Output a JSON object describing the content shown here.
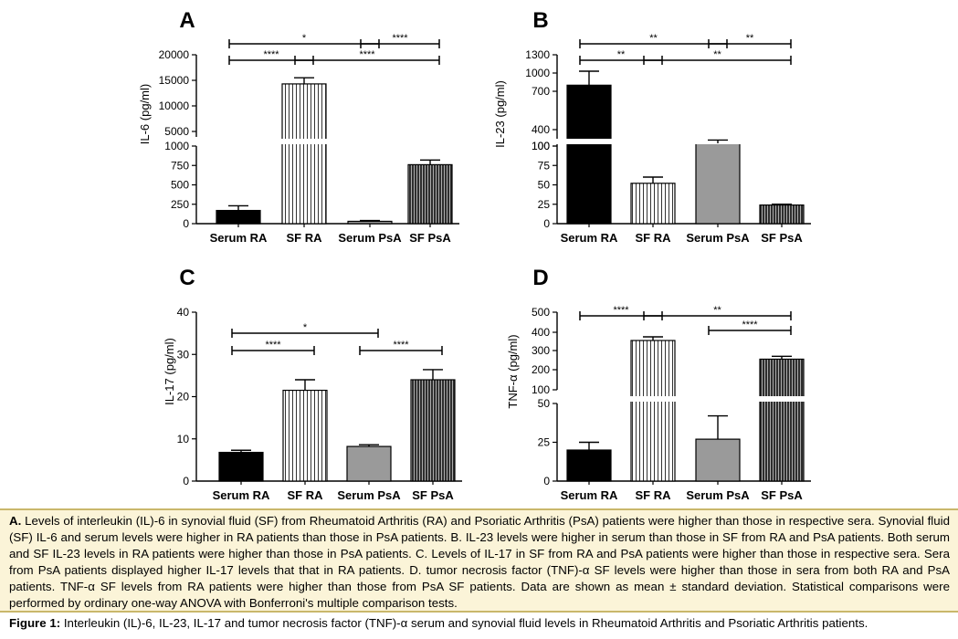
{
  "chart_data": [
    {
      "panel": "A",
      "type": "bar",
      "ylabel": "IL-6 (pg/ml)",
      "categories": [
        "Serum RA",
        "SF RA",
        "Serum PsA",
        "SF PsA"
      ],
      "values": [
        170,
        14300,
        30,
        760
      ],
      "errors": [
        60,
        1200,
        10,
        60
      ],
      "yaxis_broken": true,
      "lower_ticks": [
        "0",
        "250",
        "500",
        "750",
        "1000"
      ],
      "upper_ticks": [
        "5000",
        "10000",
        "15000",
        "20000"
      ],
      "significance": [
        {
          "from": 0,
          "to": 2,
          "label": "*",
          "level": 0
        },
        {
          "from": 2,
          "to": 3,
          "label": "****",
          "level": 0
        },
        {
          "from": 0,
          "to": 1,
          "label": "****",
          "level": 1
        },
        {
          "from": 1,
          "to": 3,
          "label": "****",
          "level": 1
        }
      ]
    },
    {
      "panel": "B",
      "type": "bar",
      "ylabel": "IL-23 (pg/ml)",
      "categories": [
        "Serum RA",
        "SF RA",
        "Serum PsA",
        "SF PsA"
      ],
      "values": [
        800,
        52,
        150,
        24
      ],
      "errors": [
        230,
        8,
        60,
        1
      ],
      "yaxis_broken": true,
      "lower_ticks": [
        "0",
        "25",
        "50",
        "75",
        "100"
      ],
      "upper_ticks": [
        "100",
        "400",
        "700",
        "1000",
        "1300"
      ],
      "significance": [
        {
          "from": 0,
          "to": 2,
          "label": "**",
          "level": 0
        },
        {
          "from": 2,
          "to": 3,
          "label": "**",
          "level": 0
        },
        {
          "from": 0,
          "to": 1,
          "label": "**",
          "level": 1
        },
        {
          "from": 1,
          "to": 3,
          "label": "**",
          "level": 1
        }
      ]
    },
    {
      "panel": "C",
      "type": "bar",
      "ylabel": "IL-17 (pg/ml)",
      "categories": [
        "Serum RA",
        "SF RA",
        "Serum PsA",
        "SF PsA"
      ],
      "values": [
        6.8,
        21.5,
        8.2,
        24
      ],
      "errors": [
        0.5,
        2.5,
        0.4,
        2.4
      ],
      "yaxis_broken": false,
      "ylim": [
        0,
        40
      ],
      "ticks": [
        "0",
        "10",
        "20",
        "30",
        "40"
      ],
      "significance": [
        {
          "from": 0,
          "to": 2,
          "label": "*",
          "level": 0
        },
        {
          "from": 0,
          "to": 1,
          "label": "****",
          "level": 1
        },
        {
          "from": 2,
          "to": 3,
          "label": "****",
          "level": 1
        }
      ]
    },
    {
      "panel": "D",
      "type": "bar",
      "ylabel": "TNF-α (pg/ml)",
      "categories": [
        "Serum RA",
        "SF RA",
        "Serum PsA",
        "SF PsA"
      ],
      "values": [
        20,
        355,
        27,
        255
      ],
      "errors": [
        5,
        20,
        15,
        15
      ],
      "yaxis_broken": true,
      "lower_ticks": [
        "0",
        "25",
        "50"
      ],
      "upper_ticks": [
        "100",
        "200",
        "300",
        "400",
        "500"
      ],
      "significance": [
        {
          "from": 0,
          "to": 1,
          "label": "****",
          "level": 0
        },
        {
          "from": 1,
          "to": 3,
          "label": "**",
          "level": 0
        },
        {
          "from": 2,
          "to": 3,
          "label": "****",
          "level": 1
        }
      ]
    }
  ],
  "legend": {
    "lead": "A.",
    "text": "Levels of interleukin (IL)-6 in synovial fluid (SF) from Rheumatoid Arthritis (RA) and Psoriatic Arthritis (PsA) patients were higher than those in respective sera. Synovial fluid (SF) IL-6 and serum levels were higher in RA patients than those in PsA patients. B. IL-23 levels were higher in serum than those in SF from RA and PsA patients. Both serum and SF IL-23 levels in RA patients were higher than those in PsA patients. C. Levels of IL-17 in SF from RA and PsA patients were higher than those in respective sera. Sera from PsA patients displayed higher IL-17 levels that that in RA patients. D. tumor necrosis factor (TNF)-α SF levels were higher than those in sera from both RA and PsA patients. TNF-α SF levels from RA patients were higher than those from PsA SF patients. Data are shown as mean ± standard deviation. Statistical comparisons were performed by ordinary one-way ANOVA with Bonferroni's multiple comparison tests."
  },
  "figure_caption": {
    "lead": "Figure 1:",
    "text": "Interleukin (IL)-6, IL-23, IL-17 and tumor necrosis factor (TNF)-α serum and synovial fluid levels in Rheumatoid Arthritis and Psoriatic Arthritis patients."
  },
  "colors": {
    "serum_ra": "#000000",
    "sf_ra": "#ffffff",
    "serum_psa": "#9a9a9a",
    "sf_psa": "#2e2e2e",
    "caption_bg": "#fbf4d8",
    "caption_border": "#c9b76b"
  }
}
